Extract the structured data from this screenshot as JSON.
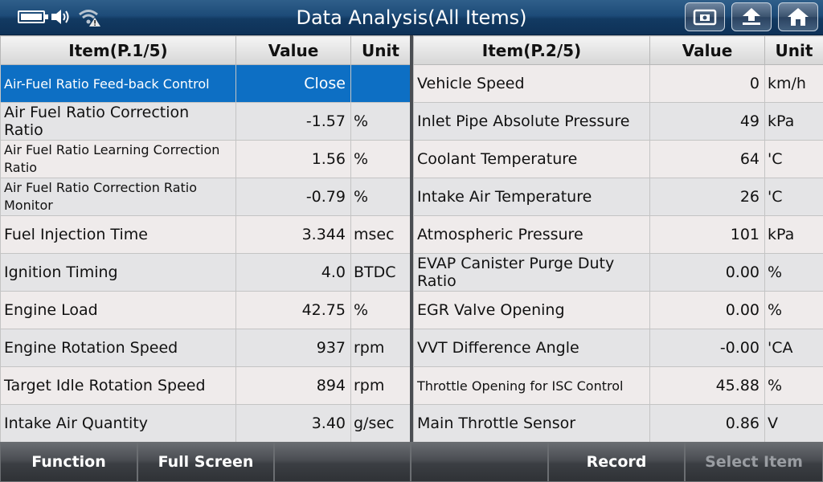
{
  "window": {
    "title": "Data Analysis(All Items)",
    "status_icons": [
      "battery-icon",
      "speaker-icon",
      "wifi-warning-icon"
    ],
    "top_buttons": [
      "screenshot-icon",
      "back-icon",
      "home-icon"
    ]
  },
  "left_table": {
    "headers": {
      "item": "Item(P.1/5)",
      "value": "Value",
      "unit": "Unit"
    },
    "rows": [
      {
        "item": "Air-Fuel Ratio Feed-back Control",
        "value": "Close",
        "unit": ""
      },
      {
        "item": "Air Fuel Ratio Correction Ratio",
        "value": "-1.57",
        "unit": "%"
      },
      {
        "item": "Air Fuel Ratio Learning Correction Ratio",
        "value": "1.56",
        "unit": "%"
      },
      {
        "item": "Air Fuel Ratio Correction Ratio Monitor",
        "value": "-0.79",
        "unit": "%"
      },
      {
        "item": "Fuel Injection Time",
        "value": "3.344",
        "unit": "msec"
      },
      {
        "item": "Ignition Timing",
        "value": "4.0",
        "unit": "BTDC"
      },
      {
        "item": "Engine Load",
        "value": "42.75",
        "unit": "%"
      },
      {
        "item": "Engine Rotation Speed",
        "value": "937",
        "unit": "rpm"
      },
      {
        "item": "Target Idle Rotation Speed",
        "value": "894",
        "unit": "rpm"
      },
      {
        "item": "Intake Air Quantity",
        "value": "3.40",
        "unit": "g/sec"
      }
    ]
  },
  "right_table": {
    "headers": {
      "item": "Item(P.2/5)",
      "value": "Value",
      "unit": "Unit"
    },
    "rows": [
      {
        "item": "Vehicle Speed",
        "value": "0",
        "unit": "km/h"
      },
      {
        "item": "Inlet Pipe Absolute Pressure",
        "value": "49",
        "unit": "kPa"
      },
      {
        "item": "Coolant Temperature",
        "value": "64",
        "unit": "'C"
      },
      {
        "item": "Intake Air Temperature",
        "value": "26",
        "unit": "'C"
      },
      {
        "item": "Atmospheric Pressure",
        "value": "101",
        "unit": "kPa"
      },
      {
        "item": "EVAP Canister Purge Duty Ratio",
        "value": "0.00",
        "unit": "%"
      },
      {
        "item": "EGR Valve Opening",
        "value": "0.00",
        "unit": "%"
      },
      {
        "item": "VVT Difference Angle",
        "value": "-0.00",
        "unit": "'CA"
      },
      {
        "item": "Throttle Opening for ISC Control",
        "value": "45.88",
        "unit": "%"
      },
      {
        "item": "Main Throttle Sensor",
        "value": "0.86",
        "unit": "V"
      }
    ]
  },
  "bottom_bar": {
    "buttons": [
      "Function",
      "Full Screen",
      "",
      "",
      "Record",
      "Select Item"
    ]
  },
  "colors": {
    "title_bar": "#1d4b78",
    "selected_row": "#0d6fc4",
    "disabled_text": "#9a9da2"
  }
}
